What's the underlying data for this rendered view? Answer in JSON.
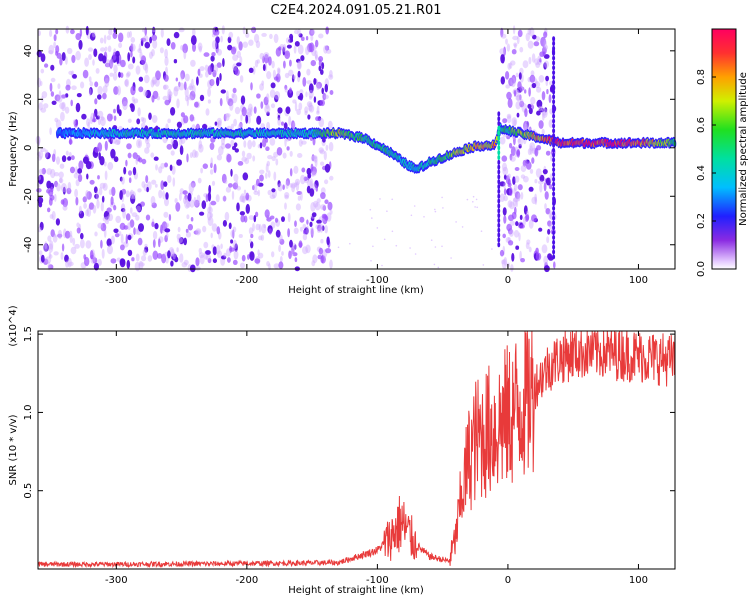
{
  "title": "C2E4.2024.091.05.21.R01",
  "colors": {
    "trace": "#e83a3a",
    "speckle": "#9a3cff",
    "panel_bg": "#ffffff",
    "axis": "#000000"
  },
  "chart_data": [
    {
      "type": "heatmap",
      "xlabel": "Height of straight line (km)",
      "ylabel": "Frequency (Hz)",
      "xlim": [
        -360,
        128
      ],
      "ylim": [
        -50,
        49
      ],
      "x_ticks": [
        -300,
        -200,
        -100,
        0,
        100
      ],
      "y_ticks": [
        -40,
        -20,
        0,
        20,
        40
      ],
      "colormap": "rainbow (purple to red)",
      "colorbar": {
        "label": "Normalized spectral amplitude",
        "range": [
          0,
          1
        ],
        "ticks": [
          "0.0",
          "0.2",
          "0.4",
          "0.6",
          "0.8"
        ]
      },
      "ridge": {
        "x": [
          -345,
          -300,
          -250,
          -200,
          -150,
          -130,
          -110,
          -90,
          -80,
          -70,
          -60,
          -50,
          -40,
          -30,
          -20,
          -10,
          -6,
          40,
          60,
          80,
          100,
          128
        ],
        "y": [
          6,
          6,
          6,
          6,
          6,
          6,
          4,
          -2,
          -6,
          -9,
          -6,
          -4,
          -2,
          0,
          1,
          1,
          8,
          2,
          2,
          2,
          2,
          2
        ],
        "amplitude": [
          0.3,
          0.45,
          0.45,
          0.45,
          0.45,
          0.7,
          0.55,
          0.5,
          0.45,
          0.45,
          0.5,
          0.55,
          0.7,
          0.75,
          0.8,
          0.8,
          0.5,
          1.0,
          1.0,
          1.0,
          0.9,
          0.6
        ]
      },
      "noise_bands_km": [
        [
          -360,
          -135
        ],
        [
          -5,
          36
        ]
      ]
    },
    {
      "type": "line",
      "xlabel": "Height of straight line (km)",
      "ylabel": "SNR (10 * v/v)",
      "y_multiplier": "(x10^4)",
      "xlim": [
        -360,
        128
      ],
      "ylim": [
        0,
        15200
      ],
      "x_ticks": [
        -300,
        -200,
        -100,
        0,
        100
      ],
      "y_ticks": [
        5000,
        10000,
        15000
      ],
      "y_tick_labels": [
        "0.5",
        "1.0",
        "1.5"
      ],
      "series": [
        {
          "x": [
            -360,
            -300,
            -200,
            -130,
            -115,
            -100,
            -90,
            -82,
            -78,
            -70,
            -60,
            -50,
            -45,
            -40,
            -35,
            -30,
            -25,
            -20,
            -15,
            -10,
            -5,
            0,
            5,
            10,
            15,
            20,
            25,
            30,
            35,
            40,
            50,
            60,
            70,
            80,
            90,
            100,
            110,
            120,
            128
          ],
          "y": [
            300,
            300,
            350,
            400,
            800,
            1200,
            2000,
            3000,
            2500,
            1500,
            800,
            600,
            500,
            2000,
            5000,
            7000,
            8200,
            8500,
            8800,
            9000,
            9400,
            9700,
            10100,
            10600,
            11000,
            11600,
            12200,
            12800,
            13200,
            13500,
            13800,
            13900,
            13900,
            13800,
            13700,
            13600,
            13500,
            13400,
            13300
          ]
        }
      ]
    }
  ]
}
